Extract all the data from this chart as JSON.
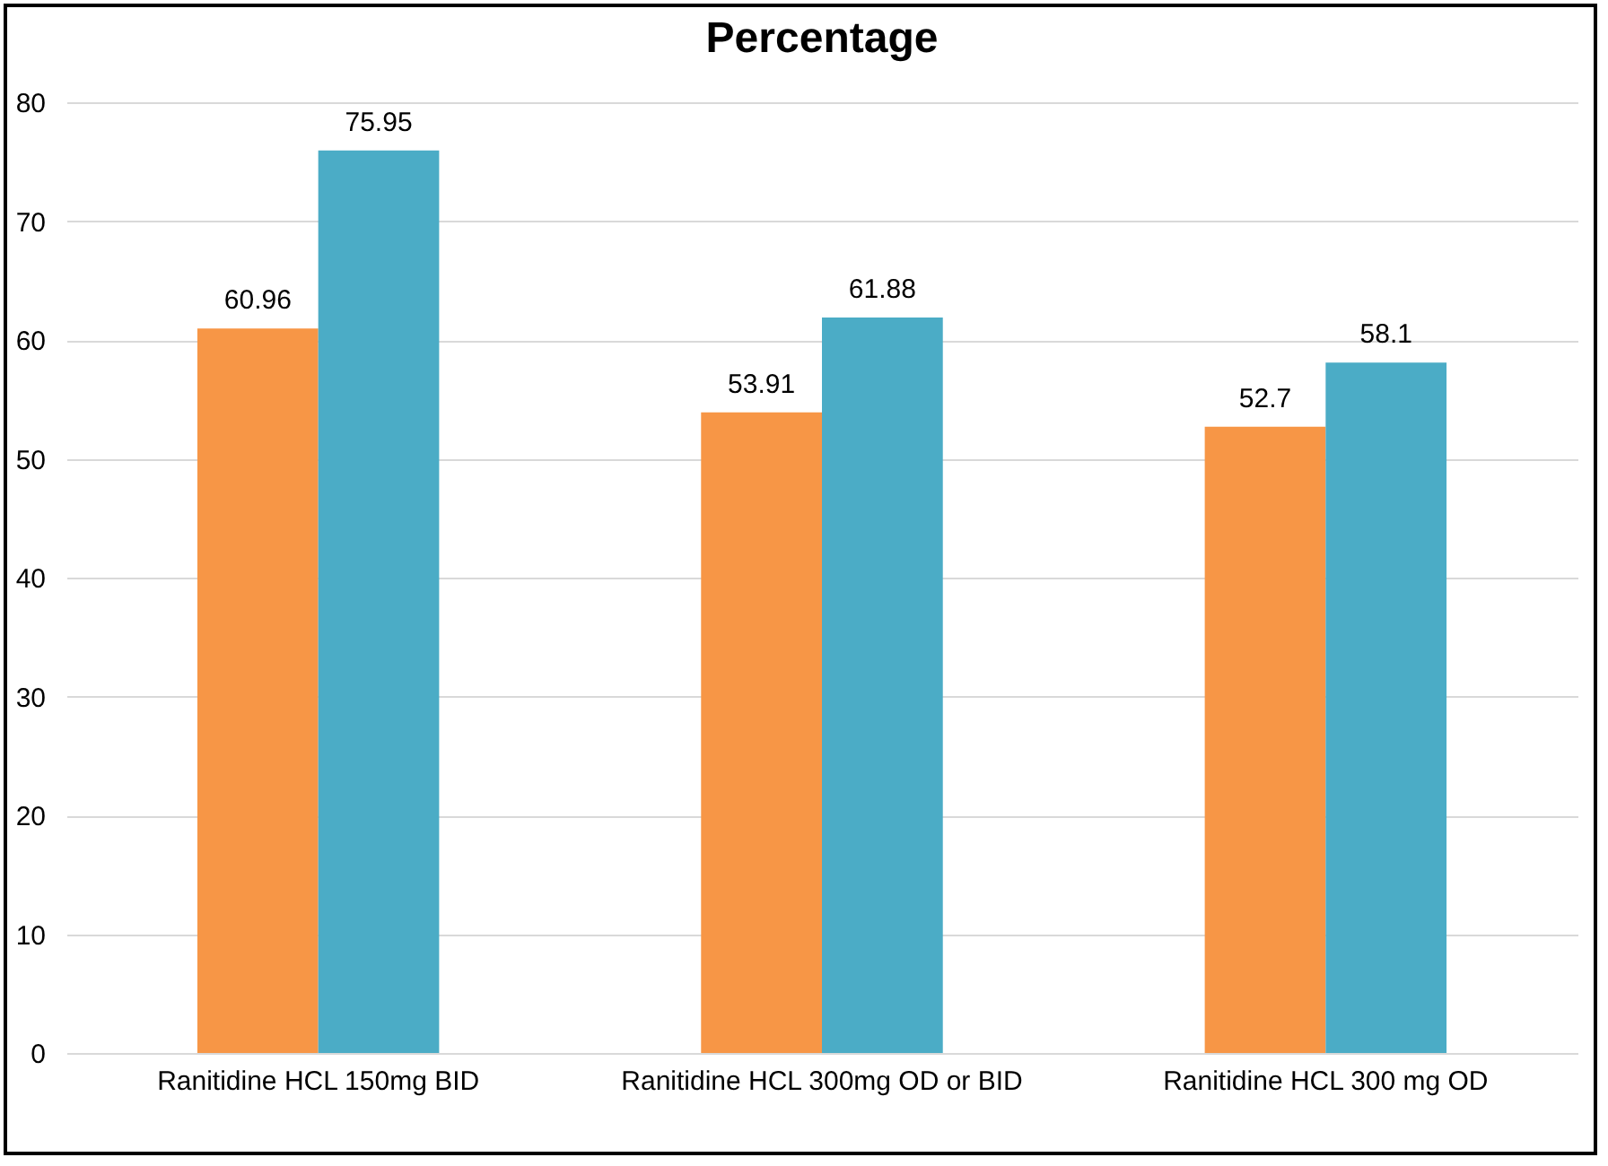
{
  "chart_data": {
    "type": "bar",
    "title": "Percentage",
    "categories": [
      "Ranitidine HCL  150mg BID",
      "Ranitidine HCL 300mg OD or BID",
      "Ranitidine HCL 300 mg OD"
    ],
    "series": [
      {
        "color": "#f79646",
        "values": [
          60.96,
          53.91,
          52.7
        ]
      },
      {
        "color": "#4bacc6",
        "values": [
          75.95,
          61.88,
          58.1
        ]
      }
    ],
    "ylim": [
      0,
      80
    ],
    "yticks": [
      0,
      10,
      20,
      30,
      40,
      50,
      60,
      70,
      80
    ],
    "grid": "y",
    "data_labels": true
  }
}
